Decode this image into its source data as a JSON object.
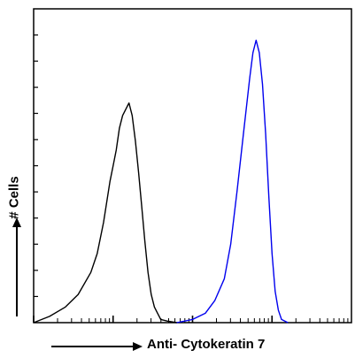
{
  "chart_data": {
    "type": "line",
    "title": "",
    "xlabel": "Anti- Cytokeratin 7",
    "ylabel": "# Cells",
    "xscale": "log",
    "xlim": [
      0,
      1
    ],
    "ylim": [
      0,
      1
    ],
    "grid": false,
    "legend": "none",
    "series": [
      {
        "color": "#000000",
        "x": [
          0.0,
          0.05,
          0.1,
          0.14,
          0.18,
          0.2,
          0.22,
          0.24,
          0.25,
          0.26,
          0.27,
          0.28,
          0.29,
          0.3,
          0.31,
          0.32,
          0.33,
          0.34,
          0.35,
          0.36,
          0.37,
          0.38,
          0.39,
          0.4,
          0.42,
          0.45
        ],
        "y": [
          0.0,
          0.02,
          0.05,
          0.09,
          0.16,
          0.22,
          0.32,
          0.45,
          0.5,
          0.55,
          0.62,
          0.66,
          0.68,
          0.7,
          0.66,
          0.58,
          0.48,
          0.37,
          0.26,
          0.16,
          0.09,
          0.05,
          0.03,
          0.01,
          0.005,
          0.0
        ]
      },
      {
        "color": "#0000ee",
        "x": [
          0.45,
          0.5,
          0.54,
          0.57,
          0.6,
          0.62,
          0.64,
          0.66,
          0.68,
          0.69,
          0.7,
          0.71,
          0.72,
          0.73,
          0.74,
          0.75,
          0.76,
          0.77,
          0.78,
          0.8
        ],
        "y": [
          0.0,
          0.01,
          0.03,
          0.07,
          0.14,
          0.25,
          0.42,
          0.6,
          0.78,
          0.86,
          0.9,
          0.86,
          0.76,
          0.6,
          0.4,
          0.22,
          0.1,
          0.04,
          0.01,
          0.0
        ]
      }
    ]
  },
  "colors": {
    "axis": "#000000",
    "control": "#000000",
    "sample": "#0000ee"
  }
}
